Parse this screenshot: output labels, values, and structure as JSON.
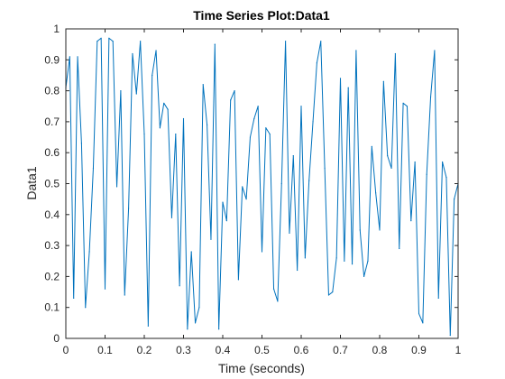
{
  "chart_data": {
    "type": "line",
    "title": "Time Series Plot:Data1",
    "xlabel": "Time (seconds)",
    "ylabel": "Data1",
    "xlim": [
      0,
      1
    ],
    "ylim": [
      0,
      1
    ],
    "grid": false,
    "x_ticks": [
      "0",
      "0.1",
      "0.2",
      "0.3",
      "0.4",
      "0.5",
      "0.6",
      "0.7",
      "0.8",
      "0.9",
      "1"
    ],
    "y_ticks": [
      "0",
      "0.1",
      "0.2",
      "0.3",
      "0.4",
      "0.5",
      "0.6",
      "0.7",
      "0.8",
      "0.9",
      "1"
    ],
    "series": [
      {
        "color": "#0072BD",
        "x": [
          0.0,
          0.01,
          0.02,
          0.03,
          0.04,
          0.05,
          0.06,
          0.07,
          0.08,
          0.09,
          0.1,
          0.11,
          0.12,
          0.13,
          0.14,
          0.15,
          0.16,
          0.17,
          0.18,
          0.19,
          0.2,
          0.21,
          0.22,
          0.23,
          0.24,
          0.25,
          0.26,
          0.27,
          0.28,
          0.29,
          0.3,
          0.31,
          0.32,
          0.33,
          0.34,
          0.35,
          0.36,
          0.37,
          0.38,
          0.39,
          0.4,
          0.41,
          0.42,
          0.43,
          0.44,
          0.45,
          0.46,
          0.47,
          0.48,
          0.49,
          0.5,
          0.51,
          0.52,
          0.53,
          0.54,
          0.55,
          0.56,
          0.57,
          0.58,
          0.59,
          0.6,
          0.61,
          0.62,
          0.63,
          0.64,
          0.65,
          0.66,
          0.67,
          0.68,
          0.69,
          0.7,
          0.71,
          0.72,
          0.73,
          0.74,
          0.75,
          0.76,
          0.77,
          0.78,
          0.79,
          0.8,
          0.81,
          0.82,
          0.83,
          0.84,
          0.85,
          0.86,
          0.87,
          0.88,
          0.89,
          0.9,
          0.91,
          0.92,
          0.93,
          0.94,
          0.95,
          0.96,
          0.97,
          0.98,
          0.99,
          1.0
        ],
        "y": [
          0.81,
          0.91,
          0.13,
          0.91,
          0.63,
          0.1,
          0.28,
          0.55,
          0.96,
          0.97,
          0.16,
          0.97,
          0.96,
          0.49,
          0.8,
          0.14,
          0.42,
          0.92,
          0.79,
          0.96,
          0.66,
          0.04,
          0.85,
          0.93,
          0.68,
          0.76,
          0.74,
          0.39,
          0.66,
          0.17,
          0.71,
          0.03,
          0.28,
          0.05,
          0.1,
          0.82,
          0.69,
          0.32,
          0.95,
          0.03,
          0.44,
          0.38,
          0.77,
          0.8,
          0.19,
          0.49,
          0.45,
          0.65,
          0.71,
          0.75,
          0.28,
          0.68,
          0.66,
          0.16,
          0.12,
          0.5,
          0.96,
          0.34,
          0.59,
          0.22,
          0.75,
          0.26,
          0.51,
          0.7,
          0.89,
          0.96,
          0.55,
          0.14,
          0.15,
          0.26,
          0.84,
          0.25,
          0.81,
          0.24,
          0.93,
          0.35,
          0.2,
          0.25,
          0.62,
          0.47,
          0.35,
          0.83,
          0.59,
          0.55,
          0.92,
          0.29,
          0.76,
          0.75,
          0.38,
          0.57,
          0.08,
          0.05,
          0.53,
          0.78,
          0.93,
          0.13,
          0.57,
          0.52,
          0.01,
          0.45,
          0.5
        ]
      }
    ]
  }
}
